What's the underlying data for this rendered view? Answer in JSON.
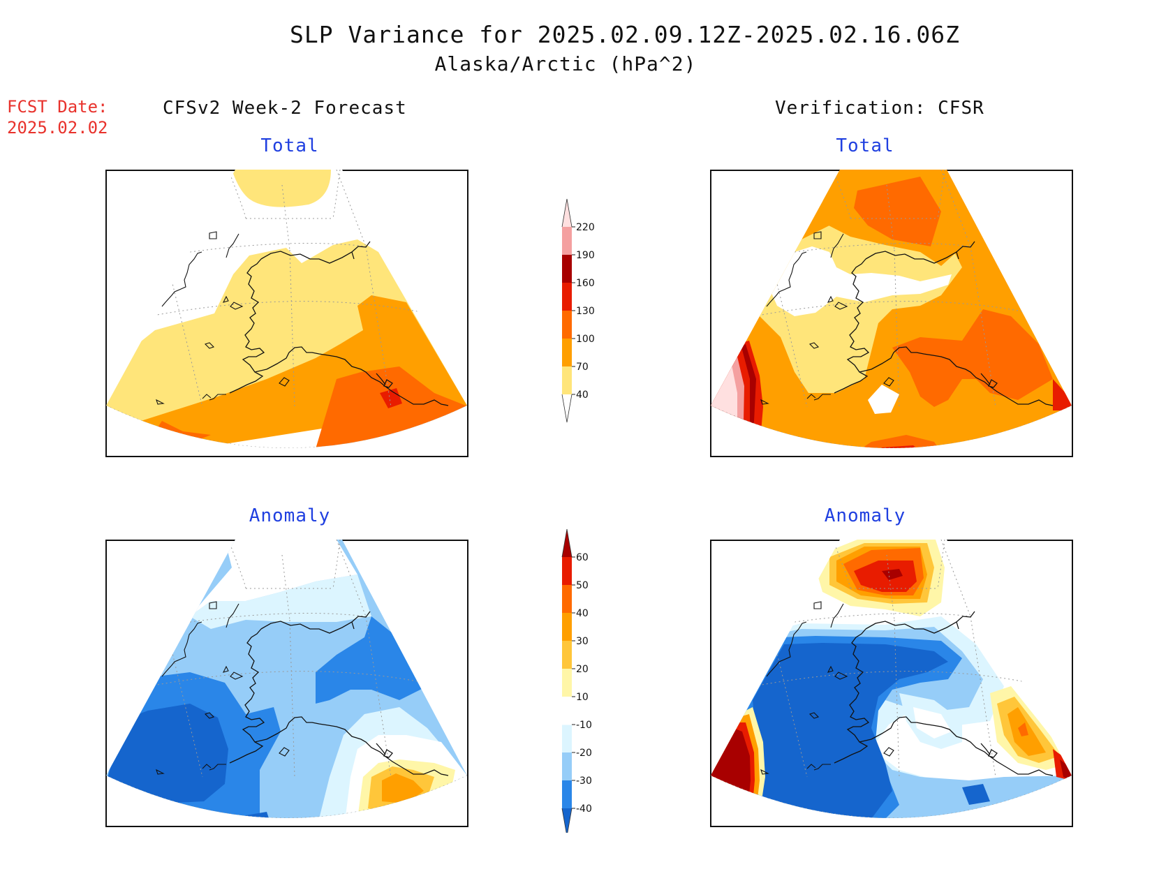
{
  "header": {
    "title": "SLP Variance for 2025.02.09.12Z-2025.02.16.06Z",
    "subtitle": "Alaska/Arctic (hPa^2)",
    "fcst_label": "FCST Date:",
    "fcst_date": "2025.02.02"
  },
  "columns": {
    "left": "CFSv2 Week-2 Forecast",
    "right": "Verification: CFSR"
  },
  "panels": {
    "total_label": "Total",
    "anomaly_label": "Anomaly"
  },
  "colorbars": {
    "total": {
      "levels": [
        "40",
        "70",
        "100",
        "130",
        "160",
        "190",
        "220"
      ],
      "colors": [
        "#ffffff",
        "#ffe57a",
        "#ff9f00",
        "#ff6a00",
        "#e81c00",
        "#a80000",
        "#f4a0a0",
        "#ffe0e0"
      ]
    },
    "anomaly": {
      "levels": [
        "-40",
        "-30",
        "-20",
        "-10",
        "10",
        "20",
        "30",
        "40",
        "50",
        "60"
      ],
      "colors": [
        "#1565cd",
        "#2a86e8",
        "#96cdf8",
        "#dcf5ff",
        "#ffffff",
        "#fff6a8",
        "#ffc63a",
        "#ff9f00",
        "#ff6a00",
        "#e81c00",
        "#a80000"
      ]
    }
  },
  "map_colors": {
    "yellow": "#ffe57a",
    "orange": "#ff9f00",
    "dark_orange": "#ff6a00",
    "red": "#e81c00",
    "dark_red": "#a80000",
    "pink": "#f4a0a0",
    "light_pink": "#ffe0e0",
    "deep_blue": "#1565cd",
    "blue": "#2a86e8",
    "light_blue": "#96cdf8",
    "pale_blue": "#dcf5ff",
    "pale_yellow": "#fff6a8",
    "light_orange": "#ffc63a"
  }
}
